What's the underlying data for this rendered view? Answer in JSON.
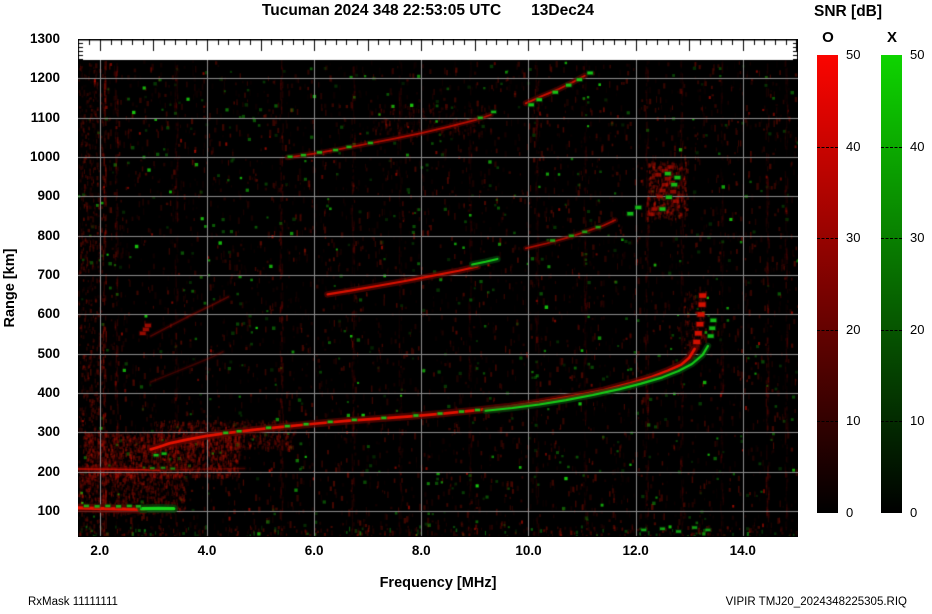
{
  "header": {
    "title": "Tucuman 2024 348 22:53:05 UTC",
    "date": "13Dec24"
  },
  "axes": {
    "x_label": "Frequency [MHz]",
    "y_label": "Range [km]",
    "x_ticks": [
      2.0,
      4.0,
      6.0,
      8.0,
      10.0,
      12.0,
      14.0
    ],
    "y_ticks": [
      100,
      200,
      300,
      400,
      500,
      600,
      700,
      800,
      900,
      1000,
      1100,
      1200,
      1300
    ]
  },
  "colorbar": {
    "title": "SNR [dB]",
    "o_label": "O",
    "x_label": "X",
    "ticks": [
      50,
      40,
      30,
      20,
      10,
      0
    ],
    "o_top_color": "#fb0500",
    "x_top_color": "#0ed400",
    "bottom_color": "#000000"
  },
  "footer": {
    "left": "RxMask 11111111",
    "right": "VIPIR  TMJ20_2024348225305.RIQ"
  },
  "chart_data": {
    "type": "heatmap",
    "title": "Tucuman 2024 348 22:53:05 UTC 13Dec24 ionogram, SNR [dB] O and X modes",
    "xlabel": "Frequency [MHz]",
    "ylabel": "Range [km]",
    "xlim": [
      1.593,
      15.03
    ],
    "ylim": [
      34,
      1247
    ],
    "axis_ylim": [
      34,
      1300
    ],
    "grid": true,
    "grid_color": "#8c8c8c",
    "bg_color": "#000000",
    "o_color": "#e31200",
    "x_color": "#16d41a",
    "o_halo": "#5c0400",
    "x_halo": "#06430b",
    "grid_x": [
      2,
      4,
      6,
      8,
      10,
      12,
      14
    ],
    "grid_y": [
      100,
      200,
      300,
      400,
      500,
      600,
      700,
      800,
      900,
      1000,
      1100,
      1200
    ],
    "traces": [
      {
        "name": "Es-100km-O",
        "mode": "O",
        "style": "line",
        "width": 6,
        "alpha": 1.0,
        "points": [
          [
            1.6,
            108
          ],
          [
            2.1,
            106
          ],
          [
            2.5,
            105
          ],
          [
            2.82,
            104
          ]
        ]
      },
      {
        "name": "Es-100km-X-tip",
        "mode": "X",
        "style": "line",
        "width": 6,
        "alpha": 1.0,
        "points": [
          [
            2.78,
            106
          ],
          [
            3.1,
            107
          ],
          [
            3.38,
            106
          ]
        ]
      },
      {
        "name": "Es-100km-X-flecks",
        "mode": "X",
        "style": "dashes",
        "width": 3,
        "alpha": 0.75,
        "points": [
          [
            1.75,
            113
          ],
          [
            1.95,
            112
          ],
          [
            2.15,
            113
          ],
          [
            2.35,
            112
          ],
          [
            2.55,
            113
          ],
          [
            2.72,
            112
          ]
        ]
      },
      {
        "name": "Es-200km-O",
        "mode": "O",
        "style": "line",
        "width": 2.5,
        "alpha": 0.75,
        "points": [
          [
            1.6,
            207
          ],
          [
            2.2,
            206
          ],
          [
            2.8,
            205
          ],
          [
            3.1,
            204
          ]
        ]
      },
      {
        "name": "Es-200km-O-tail",
        "mode": "O",
        "style": "line",
        "width": 2,
        "alpha": 0.25,
        "points": [
          [
            3.1,
            204
          ],
          [
            3.9,
            206
          ],
          [
            4.7,
            208
          ]
        ]
      },
      {
        "name": "Es-200km-X",
        "mode": "X",
        "style": "dashes",
        "width": 2.5,
        "alpha": 0.6,
        "points": [
          [
            2.98,
            209
          ],
          [
            3.18,
            210
          ],
          [
            3.36,
            208
          ]
        ]
      },
      {
        "name": "F-main-O",
        "mode": "O",
        "style": "line",
        "width": 5,
        "alpha": 1.0,
        "points": [
          [
            2.95,
            257
          ],
          [
            3.1,
            263
          ],
          [
            3.3,
            272
          ],
          [
            3.6,
            281
          ],
          [
            4.0,
            291
          ],
          [
            4.4,
            299
          ],
          [
            4.9,
            307
          ],
          [
            5.4,
            314
          ],
          [
            6.0,
            322
          ],
          [
            6.6,
            329
          ],
          [
            7.2,
            335
          ],
          [
            7.8,
            341
          ],
          [
            8.4,
            348
          ],
          [
            9.0,
            356
          ],
          [
            9.6,
            365
          ],
          [
            10.2,
            377
          ],
          [
            10.8,
            391
          ],
          [
            11.4,
            407
          ],
          [
            11.9,
            425
          ],
          [
            12.3,
            441
          ],
          [
            12.6,
            457
          ],
          [
            12.85,
            472
          ],
          [
            13.0,
            490
          ],
          [
            13.1,
            512
          ]
        ]
      },
      {
        "name": "F-main-O-tip",
        "mode": "O",
        "style": "dashes",
        "width": 5,
        "alpha": 0.9,
        "points": [
          [
            13.14,
            530
          ],
          [
            13.17,
            552
          ],
          [
            13.2,
            575
          ],
          [
            13.22,
            600
          ],
          [
            13.24,
            625
          ],
          [
            13.25,
            648
          ]
        ]
      },
      {
        "name": "F-main-X-flecks",
        "mode": "X",
        "style": "dashes",
        "width": 3,
        "alpha": 0.85,
        "points": [
          [
            3.05,
            242
          ],
          [
            3.2,
            246
          ],
          [
            4.35,
            299
          ],
          [
            4.6,
            303
          ],
          [
            5.15,
            312
          ],
          [
            5.5,
            316
          ],
          [
            5.85,
            321
          ],
          [
            6.3,
            327
          ],
          [
            6.75,
            332
          ],
          [
            7.3,
            337
          ],
          [
            7.9,
            343
          ],
          [
            8.35,
            348
          ],
          [
            8.75,
            353
          ],
          [
            9.05,
            357
          ]
        ]
      },
      {
        "name": "F-main-X",
        "mode": "X",
        "style": "line",
        "width": 4,
        "alpha": 0.95,
        "points": [
          [
            9.2,
            355
          ],
          [
            9.7,
            362
          ],
          [
            10.2,
            371
          ],
          [
            10.7,
            382
          ],
          [
            11.2,
            395
          ],
          [
            11.7,
            410
          ],
          [
            12.1,
            424
          ],
          [
            12.5,
            440
          ],
          [
            12.8,
            456
          ],
          [
            13.05,
            474
          ],
          [
            13.25,
            497
          ],
          [
            13.35,
            520
          ]
        ]
      },
      {
        "name": "F-main-X-tip",
        "mode": "X",
        "style": "dashes",
        "width": 4,
        "alpha": 0.85,
        "points": [
          [
            13.4,
            545
          ],
          [
            13.43,
            565
          ],
          [
            13.45,
            585
          ]
        ]
      },
      {
        "name": "2F-O",
        "mode": "O",
        "style": "line",
        "width": 4,
        "alpha": 0.95,
        "points": [
          [
            6.25,
            651
          ],
          [
            6.7,
            661
          ],
          [
            7.2,
            673
          ],
          [
            7.7,
            685
          ],
          [
            8.2,
            698
          ],
          [
            8.7,
            711
          ],
          [
            9.05,
            722
          ]
        ]
      },
      {
        "name": "2F-X-tip",
        "mode": "X",
        "style": "line",
        "width": 4,
        "alpha": 0.95,
        "points": [
          [
            8.95,
            727
          ],
          [
            9.2,
            734
          ],
          [
            9.42,
            741
          ]
        ]
      },
      {
        "name": "2F-contd-O",
        "mode": "O",
        "style": "line",
        "width": 3,
        "alpha": 0.7,
        "points": [
          [
            9.95,
            768
          ],
          [
            10.35,
            781
          ],
          [
            10.75,
            796
          ],
          [
            11.1,
            812
          ],
          [
            11.4,
            826
          ],
          [
            11.62,
            840
          ]
        ]
      },
      {
        "name": "2F-contd-X",
        "mode": "X",
        "style": "dashes",
        "width": 3,
        "alpha": 0.7,
        "points": [
          [
            10.45,
            788
          ],
          [
            10.8,
            800
          ],
          [
            11.05,
            810
          ],
          [
            11.3,
            822
          ]
        ]
      },
      {
        "name": "2F-spread-O",
        "mode": "O",
        "style": "dashes",
        "width": 4,
        "alpha": 0.5,
        "points": [
          [
            12.3,
            855
          ],
          [
            12.35,
            868
          ],
          [
            12.75,
            888
          ],
          [
            12.45,
            900
          ],
          [
            12.7,
            912
          ],
          [
            12.5,
            915
          ],
          [
            12.55,
            930
          ],
          [
            12.68,
            935
          ],
          [
            12.6,
            945
          ],
          [
            12.42,
            955
          ],
          [
            12.55,
            965
          ],
          [
            12.65,
            975
          ]
        ]
      },
      {
        "name": "2F-spread-X",
        "mode": "X",
        "style": "dashes",
        "width": 4,
        "alpha": 0.85,
        "points": [
          [
            11.9,
            856
          ],
          [
            12.05,
            872
          ],
          [
            12.5,
            868
          ],
          [
            12.62,
            898
          ],
          [
            12.72,
            930
          ],
          [
            12.78,
            948
          ],
          [
            12.6,
            958
          ]
        ]
      },
      {
        "name": "3rd-multiple-a-O",
        "mode": "O",
        "style": "line",
        "width": 3,
        "alpha": 0.75,
        "points": [
          [
            5.5,
            999
          ],
          [
            6.0,
            1009
          ],
          [
            6.5,
            1021
          ],
          [
            7.0,
            1034
          ],
          [
            7.5,
            1047
          ],
          [
            8.0,
            1061
          ],
          [
            8.5,
            1077
          ],
          [
            9.0,
            1094
          ],
          [
            9.3,
            1108
          ]
        ]
      },
      {
        "name": "3rd-multiple-a-X",
        "mode": "X",
        "style": "dashes",
        "width": 3,
        "alpha": 0.8,
        "points": [
          [
            5.55,
            1001
          ],
          [
            5.8,
            1005
          ],
          [
            6.1,
            1012
          ],
          [
            6.4,
            1018
          ],
          [
            6.65,
            1026
          ],
          [
            7.05,
            1036
          ],
          [
            9.1,
            1100
          ],
          [
            9.35,
            1115
          ]
        ]
      },
      {
        "name": "3rd-multiple-b-O",
        "mode": "O",
        "style": "line",
        "width": 3.5,
        "alpha": 0.85,
        "points": [
          [
            9.95,
            1137
          ],
          [
            10.25,
            1155
          ],
          [
            10.55,
            1172
          ],
          [
            10.82,
            1190
          ],
          [
            11.05,
            1207
          ]
        ]
      },
      {
        "name": "3rd-multiple-b-X",
        "mode": "X",
        "style": "dashes",
        "width": 3.5,
        "alpha": 0.9,
        "points": [
          [
            10.05,
            1133
          ],
          [
            10.2,
            1146
          ],
          [
            10.5,
            1165
          ],
          [
            10.75,
            1183
          ],
          [
            10.95,
            1197
          ],
          [
            11.15,
            1214
          ]
        ]
      },
      {
        "name": "oblique-echo-1",
        "mode": "O",
        "style": "line",
        "width": 2,
        "alpha": 0.3,
        "points": [
          [
            2.95,
            545
          ],
          [
            3.3,
            570
          ],
          [
            3.7,
            598
          ],
          [
            4.1,
            624
          ],
          [
            4.4,
            645
          ]
        ]
      },
      {
        "name": "oblique-echo-2",
        "mode": "O",
        "style": "line",
        "width": 2,
        "alpha": 0.22,
        "points": [
          [
            2.95,
            428
          ],
          [
            3.35,
            450
          ],
          [
            3.75,
            472
          ],
          [
            4.1,
            492
          ],
          [
            4.3,
            505
          ]
        ]
      },
      {
        "name": "blob-cluster-O",
        "mode": "O",
        "style": "dashes",
        "width": 4,
        "alpha": 0.6,
        "points": [
          [
            2.8,
            552
          ],
          [
            2.86,
            562
          ],
          [
            2.9,
            572
          ]
        ]
      },
      {
        "name": "bottom-green-specks",
        "mode": "X",
        "style": "dashes",
        "width": 3,
        "alpha": 0.7,
        "points": [
          [
            12.15,
            52
          ],
          [
            12.5,
            55
          ],
          [
            12.8,
            48
          ],
          [
            13.1,
            58
          ],
          [
            13.35,
            52
          ]
        ]
      }
    ],
    "rfi_stripes": [
      {
        "f": 2.08,
        "alpha": 0.16
      },
      {
        "f": 2.3,
        "alpha": 0.08
      },
      {
        "f": 3.42,
        "alpha": 0.05
      },
      {
        "f": 5.38,
        "alpha": 0.08
      },
      {
        "f": 6.72,
        "alpha": 0.07
      },
      {
        "f": 7.6,
        "alpha": 0.04
      },
      {
        "f": 8.9,
        "alpha": 0.04
      },
      {
        "f": 10.15,
        "alpha": 0.05
      },
      {
        "f": 11.05,
        "alpha": 0.04
      },
      {
        "f": 12.2,
        "alpha": 0.06
      },
      {
        "f": 12.85,
        "alpha": 0.05
      },
      {
        "f": 13.6,
        "alpha": 0.04
      },
      {
        "f": 14.45,
        "alpha": 0.07
      },
      {
        "f": 14.8,
        "alpha": 0.05
      }
    ],
    "clouds": [
      {
        "color": "red",
        "f": [
          1.7,
          4.6
        ],
        "r": [
          190,
          305
        ],
        "count": 1500,
        "alpha": 0.32
      },
      {
        "color": "red",
        "f": [
          3.0,
          5.6
        ],
        "r": [
          262,
          332
        ],
        "count": 600,
        "alpha": 0.28
      },
      {
        "color": "red",
        "f": [
          1.6,
          3.6
        ],
        "r": [
          95,
          220
        ],
        "count": 800,
        "alpha": 0.28
      },
      {
        "color": "red",
        "f": [
          12.2,
          12.95
        ],
        "r": [
          845,
          990
        ],
        "count": 420,
        "alpha": 0.36
      },
      {
        "color": "red",
        "f": [
          7.0,
          9.3
        ],
        "r": [
          1055,
          1135
        ],
        "count": 200,
        "alpha": 0.2
      },
      {
        "color": "red",
        "f": [
          12.9,
          13.3
        ],
        "r": [
          500,
          660
        ],
        "count": 130,
        "alpha": 0.28
      },
      {
        "color": "red",
        "f": [
          1.6,
          2.05
        ],
        "r": [
          40,
          1240
        ],
        "count": 650,
        "alpha": 0.26
      },
      {
        "color": "red",
        "f": [
          1.6,
          15.0
        ],
        "r": [
          35,
          65
        ],
        "count": 260,
        "alpha": 0.3
      },
      {
        "color": "green",
        "f": [
          1.6,
          15.0
        ],
        "r": [
          35,
          65
        ],
        "count": 80,
        "alpha": 0.5
      }
    ],
    "noise": {
      "seed": 1337,
      "red_dash_count": 4200,
      "green_speck_count": 620,
      "bright_red_count": 90
    }
  }
}
